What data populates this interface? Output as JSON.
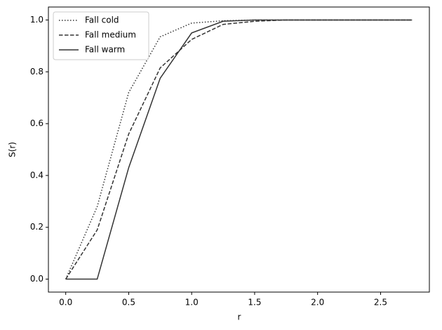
{
  "chart_data": {
    "type": "line",
    "xlabel": "r",
    "ylabel": "S(r)",
    "x": [
      0,
      0.25,
      0.5,
      0.75,
      1.0,
      1.25,
      1.5,
      1.75,
      2.0,
      2.25,
      2.5,
      2.75
    ],
    "series": [
      {
        "name": "Fall cold",
        "color": "#333333",
        "style": "dotted",
        "values": [
          0,
          0.28,
          0.72,
          0.935,
          0.988,
          0.997,
          1,
          1,
          1,
          1,
          1,
          1
        ]
      },
      {
        "name": "Fall medium",
        "color": "#333333",
        "style": "dashed",
        "values": [
          0,
          0.19,
          0.56,
          0.815,
          0.925,
          0.983,
          0.995,
          1,
          1,
          1,
          1,
          1
        ]
      },
      {
        "name": "Fall warm",
        "color": "#333333",
        "style": "solid",
        "values": [
          0,
          0,
          0.43,
          0.775,
          0.95,
          0.995,
          1,
          1,
          1,
          1,
          1,
          1
        ]
      }
    ],
    "xlim": [
      -0.1375,
      2.8875
    ],
    "xticks": [
      {
        "value": 0,
        "label": "0.0"
      },
      0.5,
      {
        "value": 1,
        "label": "1.0"
      },
      1.5,
      {
        "value": 2,
        "label": "2.0"
      },
      2.5
    ],
    "ylim": [
      -0.05,
      1.05
    ],
    "yticks": [
      {
        "value": 0,
        "label": "0.0"
      },
      0.2,
      0.4,
      0.6,
      0.8,
      {
        "value": 1,
        "label": "1.0"
      }
    ],
    "grid": false,
    "legend": "upper left"
  }
}
